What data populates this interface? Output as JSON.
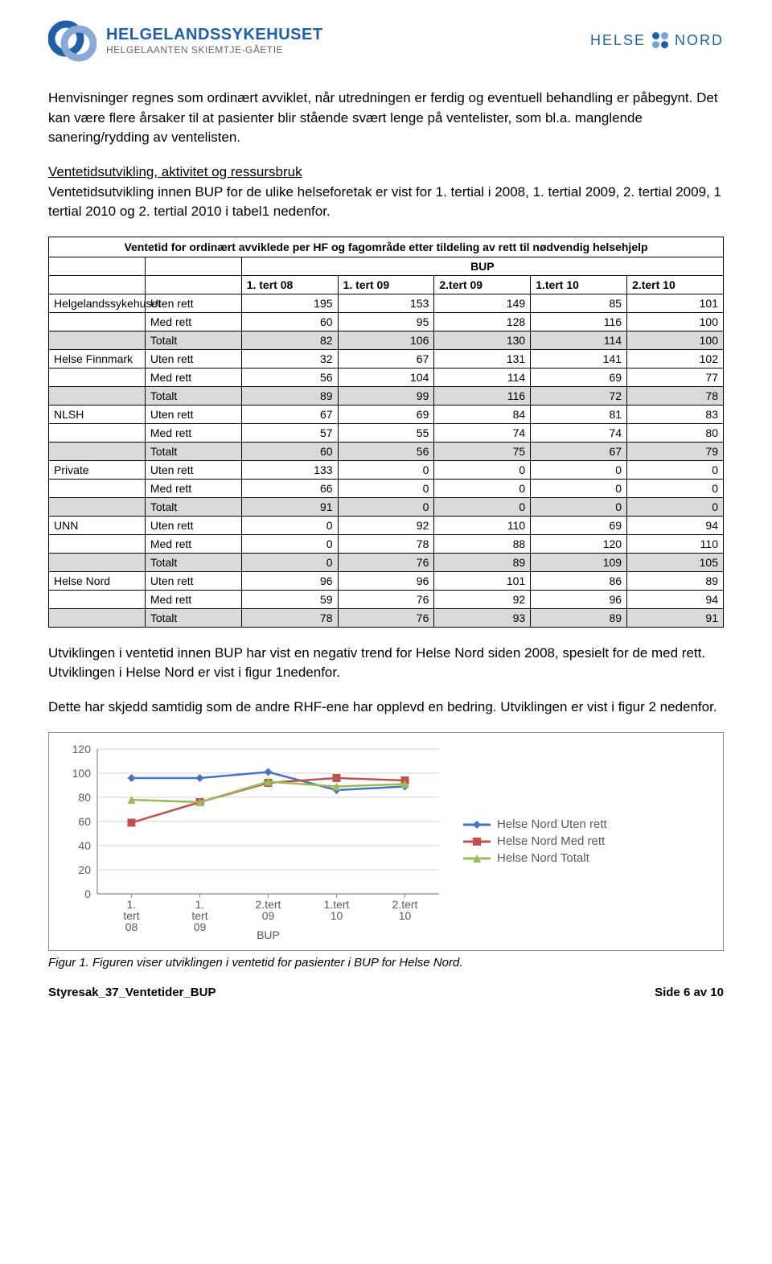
{
  "header": {
    "logo_main": "HELGELANDSSYKEHUSET",
    "logo_sub": "HELGELAANTEN SKIEMTJE-GÅETIE",
    "logo_color1": "#1f5fa8",
    "logo_color2": "#8aa9d6",
    "right_word1": "HELSE",
    "right_word2": "NORD",
    "right_color": "#1f5fa8",
    "dot_colors": [
      "#1f5fa8",
      "#7aa3d4",
      "#1f5fa8",
      "#7aa3d4"
    ]
  },
  "para1": "Henvisninger regnes som ordinært avviklet, når utredningen er ferdig og eventuell behandling er påbegynt. Det kan være flere årsaker til at pasienter blir stående svært lenge på ventelister, som bl.a. manglende sanering/rydding av ventelisten.",
  "para2_head": "Ventetidsutvikling, aktivitet og ressursbruk",
  "para2_body": "Ventetidsutvikling innen BUP for de ulike helseforetak er vist for 1. tertial i 2008, 1. tertial 2009, 2. tertial 2009, 1 tertial 2010 og 2. tertial 2010 i tabel1 nedenfor.",
  "table": {
    "title": "Ventetid for ordinært avviklede per HF og fagområde etter tildeling av rett til nødvendig helsehjelp",
    "bup_label": "BUP",
    "col_headers": [
      "1. tert 08",
      "1. tert 09",
      "2.tert 09",
      "1.tert 10",
      "2.tert 10"
    ],
    "groups": [
      {
        "name": "Helgelandssykehuset",
        "rows": [
          {
            "label": "Uten rett",
            "vals": [
              195,
              153,
              149,
              85,
              101
            ]
          },
          {
            "label": "Med rett",
            "vals": [
              60,
              95,
              128,
              116,
              100
            ]
          },
          {
            "label": "Totalt",
            "vals": [
              82,
              106,
              130,
              114,
              100
            ],
            "shaded": true
          }
        ]
      },
      {
        "name": "Helse Finnmark",
        "rows": [
          {
            "label": "Uten rett",
            "vals": [
              32,
              67,
              131,
              141,
              102
            ]
          },
          {
            "label": "Med rett",
            "vals": [
              56,
              104,
              114,
              69,
              77
            ]
          },
          {
            "label": "Totalt",
            "vals": [
              89,
              99,
              116,
              72,
              78
            ],
            "shaded": true
          }
        ]
      },
      {
        "name": "NLSH",
        "rows": [
          {
            "label": "Uten rett",
            "vals": [
              67,
              69,
              84,
              81,
              83
            ]
          },
          {
            "label": "Med rett",
            "vals": [
              57,
              55,
              74,
              74,
              80
            ]
          },
          {
            "label": "Totalt",
            "vals": [
              60,
              56,
              75,
              67,
              79
            ],
            "shaded": true
          }
        ]
      },
      {
        "name": "Private",
        "rows": [
          {
            "label": "Uten rett",
            "vals": [
              133,
              0,
              0,
              0,
              0
            ]
          },
          {
            "label": "Med rett",
            "vals": [
              66,
              0,
              0,
              0,
              0
            ]
          },
          {
            "label": "Totalt",
            "vals": [
              91,
              0,
              0,
              0,
              0
            ],
            "shaded": true
          }
        ]
      },
      {
        "name": "UNN",
        "rows": [
          {
            "label": "Uten rett",
            "vals": [
              0,
              92,
              110,
              69,
              94
            ]
          },
          {
            "label": "Med rett",
            "vals": [
              0,
              78,
              88,
              120,
              110
            ]
          },
          {
            "label": "Totalt",
            "vals": [
              0,
              76,
              89,
              109,
              105
            ],
            "shaded": true
          }
        ]
      },
      {
        "name": "Helse Nord",
        "rows": [
          {
            "label": "Uten rett",
            "vals": [
              96,
              96,
              101,
              86,
              89
            ]
          },
          {
            "label": "Med rett",
            "vals": [
              59,
              76,
              92,
              96,
              94
            ]
          },
          {
            "label": "Totalt",
            "vals": [
              78,
              76,
              93,
              89,
              91
            ],
            "shaded": true
          }
        ]
      }
    ]
  },
  "para3": "Utviklingen i ventetid innen BUP har vist en negativ trend for Helse Nord siden 2008, spesielt for de med rett. Utviklingen i Helse Nord er vist i figur 1nedenfor.",
  "para4": "Dette har skjedd samtidig som de andre RHF-ene har opplevd en bedring. Utviklingen er vist i figur 2 nedenfor.",
  "chart": {
    "type": "line",
    "ylim": [
      0,
      120
    ],
    "ytick_step": 20,
    "yticks": [
      0,
      20,
      40,
      60,
      80,
      100,
      120
    ],
    "categories": [
      "1. tert 08",
      "1. tert 09",
      "2.tert 09",
      "1.tert 10",
      "2.tert 10"
    ],
    "xlabel": "BUP",
    "series": [
      {
        "name": "Helse Nord Uten rett",
        "color": "#4472c4",
        "marker": "diamond",
        "values": [
          96,
          96,
          101,
          86,
          89
        ]
      },
      {
        "name": "Helse Nord Med rett",
        "color": "#c0504d",
        "marker": "square",
        "values": [
          59,
          76,
          92,
          96,
          94
        ]
      },
      {
        "name": "Helse Nord Totalt",
        "color": "#9bbb59",
        "marker": "triangle",
        "values": [
          78,
          76,
          93,
          89,
          91
        ]
      }
    ],
    "background_color": "#ffffff",
    "grid_color": "#d0d0d0",
    "axis_color": "#888888",
    "text_color": "#595959",
    "label_fontsize": 14,
    "line_width": 2.5,
    "marker_size": 8
  },
  "caption": "Figur 1. Figuren viser utviklingen i ventetid for pasienter i BUP for Helse Nord.",
  "footer_left": "Styresak_37_Ventetider_BUP",
  "footer_right": "Side 6 av 10"
}
